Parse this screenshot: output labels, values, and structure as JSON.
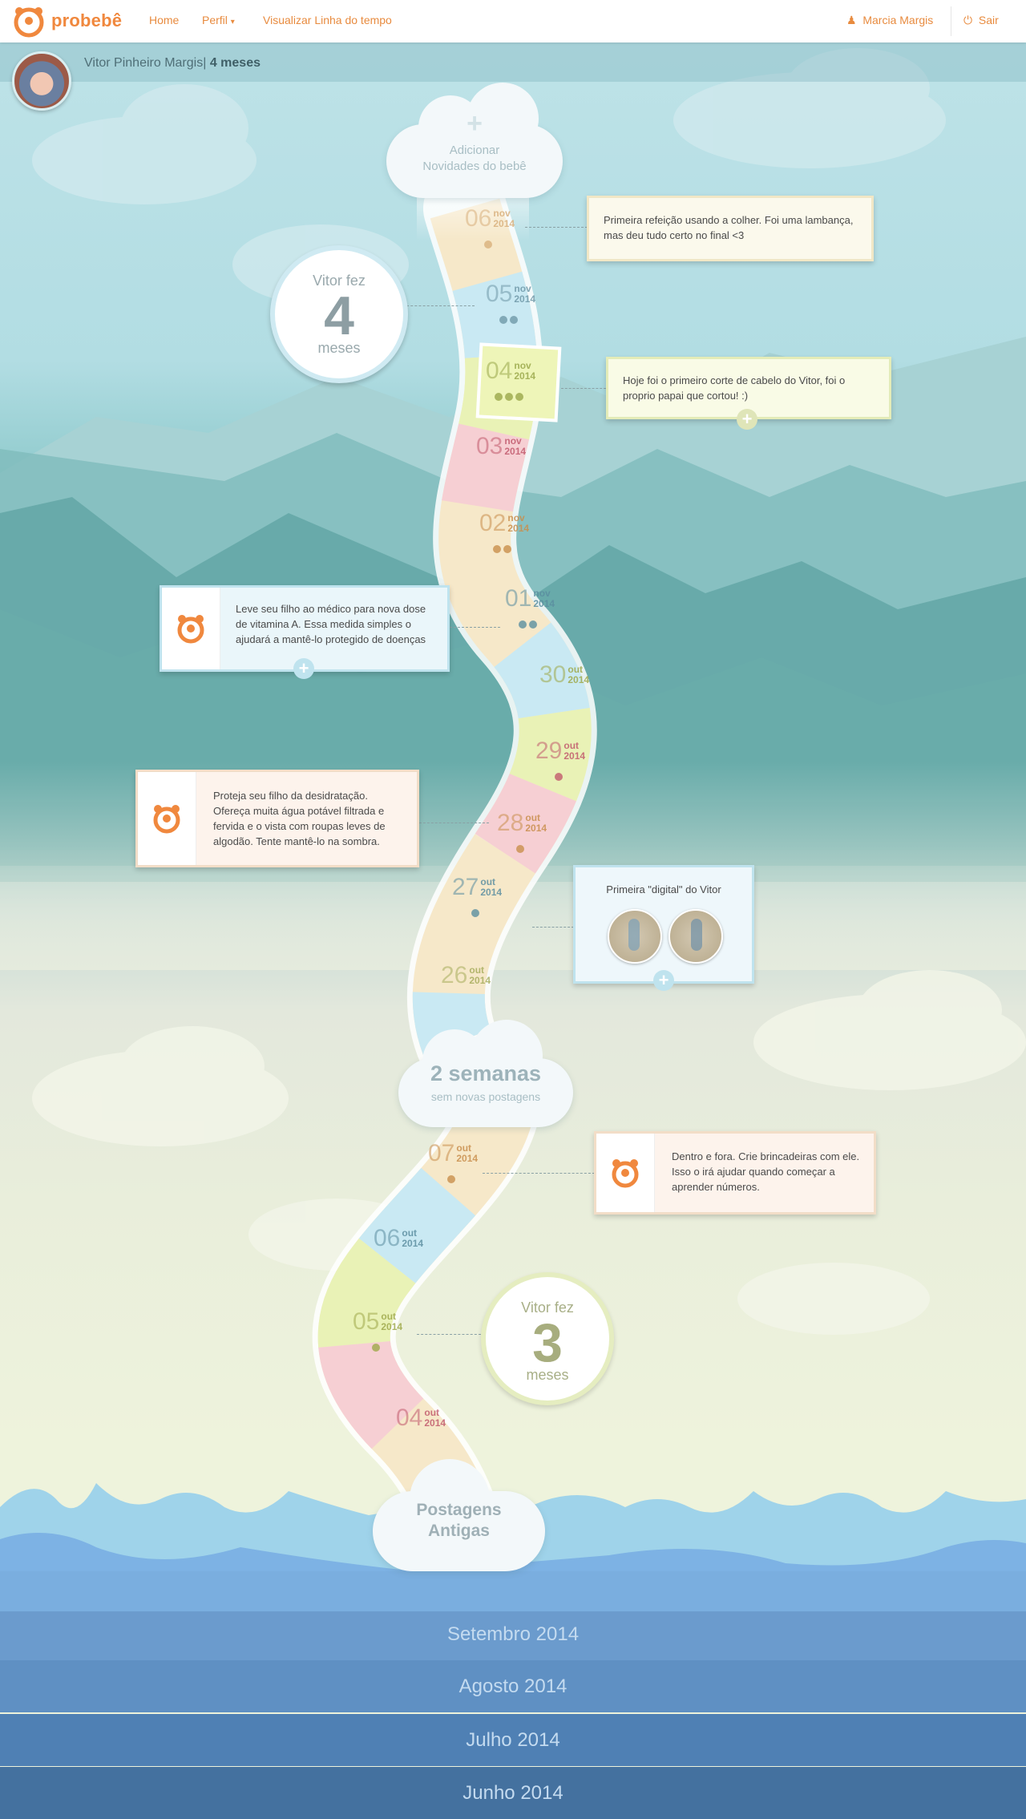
{
  "nav": {
    "brand": "probebê",
    "home": "Home",
    "profile": "Perfil",
    "timeline": "Visualizar Linha do tempo",
    "user": "Marcia Margis",
    "logout": "Sair"
  },
  "profile": {
    "name": "Vitor Pinheiro Margis",
    "separator": "|",
    "age": "4 meses"
  },
  "add_cloud": {
    "plus": "+",
    "line1": "Adicionar",
    "line2": "Novidades do bebê"
  },
  "age_top": {
    "line1": "Vitor fez",
    "number": "4",
    "unit": "meses"
  },
  "age_bottom": {
    "line1": "Vitor fez",
    "number": "3",
    "unit": "meses"
  },
  "posts": {
    "p1": "Primeira refeição usando a colher. Foi uma lambança, mas deu tudo certo no final <3",
    "p2": "Hoje foi o primeiro corte de cabelo do Vitor, foi o proprio papai que cortou! :)",
    "tip1": "Leve seu filho ao médico para nova dose de vitamina A. Essa medida simples o ajudará a mantê-lo protegido de doenças",
    "tip2": "Proteja seu filho da desidratação. Ofereça muita água potável filtrada e fervida e o vista com roupas leves de algodão.  Tente mantê-lo na sombra.",
    "photo_title": "Primeira \"digital\" do Vitor",
    "tip3": "Dentro e fora. Crie brincadeiras com ele. Isso o irá ajudar quando começar a aprender números."
  },
  "gap_cloud": {
    "title": "2 semanas",
    "subtitle": "sem novas postagens"
  },
  "old_cloud": {
    "line1": "Postagens",
    "line2": "Antigas"
  },
  "dates": [
    {
      "day": "06",
      "month": "nov",
      "year": "2014",
      "color": "#d9b07c",
      "dots": 1
    },
    {
      "day": "05",
      "month": "nov",
      "year": "2014",
      "color": "#6f98a8",
      "dots": 2
    },
    {
      "day": "04",
      "month": "nov",
      "year": "2014",
      "color": "#9aa84a",
      "dots": 3
    },
    {
      "day": "03",
      "month": "nov",
      "year": "2014",
      "color": "#c25a6d",
      "dots": 0
    },
    {
      "day": "02",
      "month": "nov",
      "year": "2014",
      "color": "#c98e4c",
      "dots": 2
    },
    {
      "day": "01",
      "month": "nov",
      "year": "2014",
      "color": "#5b8ea0",
      "dots": 2
    },
    {
      "day": "30",
      "month": "out",
      "year": "2014",
      "color": "#9fa94a",
      "dots": 0
    },
    {
      "day": "29",
      "month": "out",
      "year": "2014",
      "color": "#c25a6d",
      "dots": 1
    },
    {
      "day": "28",
      "month": "out",
      "year": "2014",
      "color": "#c98e4c",
      "dots": 1
    },
    {
      "day": "27",
      "month": "out",
      "year": "2014",
      "color": "#5b8ea0",
      "dots": 1
    },
    {
      "day": "26",
      "month": "out",
      "year": "2014",
      "color": "#a7ad5c",
      "dots": 0
    },
    {
      "day": "07",
      "month": "out",
      "year": "2014",
      "color": "#c98e4c",
      "dots": 1
    },
    {
      "day": "06",
      "month": "out",
      "year": "2014",
      "color": "#5b8ea0",
      "dots": 0
    },
    {
      "day": "05",
      "month": "out",
      "year": "2014",
      "color": "#9fa94a",
      "dots": 1
    },
    {
      "day": "04",
      "month": "out",
      "year": "2014",
      "color": "#c25a6d",
      "dots": 0
    }
  ],
  "months": [
    "Setembro 2014",
    "Agosto 2014",
    "Julho 2014",
    "Junho 2014"
  ],
  "colors": {
    "accent": "#f0883e",
    "road_yellow": "#f6e8c9",
    "road_blue": "#c9e9f3",
    "road_green": "#e9f2b6",
    "road_pink": "#f6cfd3"
  }
}
